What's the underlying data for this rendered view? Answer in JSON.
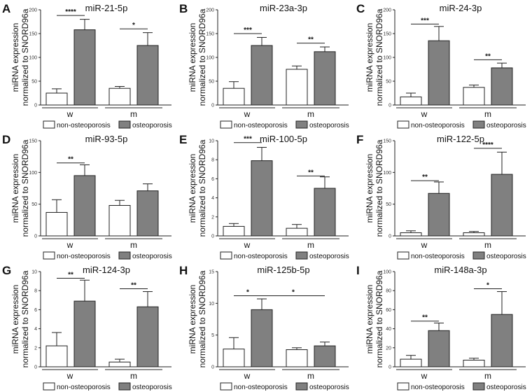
{
  "legend": {
    "a": "non-osteoporosis",
    "b": "osteoporosis"
  },
  "colors": {
    "a": "#ffffff",
    "b": "#808080",
    "stroke": "#222222"
  },
  "chart_data": [
    {
      "type": "bar",
      "panel": "A",
      "title": "miR-21-5p",
      "ylabel": [
        "miRNA expression",
        "normalized to SNORD96a"
      ],
      "categories": [
        "w",
        "m"
      ],
      "ylim": [
        0,
        200
      ],
      "yticks": [
        0,
        50,
        100,
        150,
        200
      ],
      "series": [
        {
          "name": "non-osteoporosis",
          "values": [
            25,
            35
          ],
          "errors": [
            9,
            4
          ]
        },
        {
          "name": "osteoporosis",
          "values": [
            158,
            125
          ],
          "errors": [
            22,
            27
          ]
        }
      ],
      "annotations": [
        {
          "text": "****",
          "from": "w.0",
          "to": "w.1",
          "y": 188
        },
        {
          "text": "*",
          "from": "m.0",
          "to": "m.1",
          "y": 160
        }
      ]
    },
    {
      "type": "bar",
      "panel": "B",
      "title": "miR-23a-3p",
      "ylabel": [
        "miRNA expression",
        "normalized to SNORD96a"
      ],
      "categories": [
        "w",
        "m"
      ],
      "ylim": [
        0,
        200
      ],
      "yticks": [
        0,
        50,
        100,
        150,
        200
      ],
      "series": [
        {
          "name": "non-osteoporosis",
          "values": [
            35,
            75
          ],
          "errors": [
            14,
            7
          ]
        },
        {
          "name": "osteoporosis",
          "values": [
            125,
            112
          ],
          "errors": [
            17,
            10
          ]
        }
      ],
      "annotations": [
        {
          "text": "***",
          "from": "w.0",
          "to": "w.1",
          "y": 150
        },
        {
          "text": "**",
          "from": "m.0",
          "to": "m.1",
          "y": 130
        }
      ]
    },
    {
      "type": "bar",
      "panel": "C",
      "title": "miR-24-3p",
      "ylabel": [
        "miRNA expression",
        "normalized to SNORD96a"
      ],
      "categories": [
        "w",
        "m"
      ],
      "ylim": [
        0,
        200
      ],
      "yticks": [
        0,
        50,
        100,
        150,
        200
      ],
      "series": [
        {
          "name": "non-osteoporosis",
          "values": [
            17,
            37
          ],
          "errors": [
            8,
            5
          ]
        },
        {
          "name": "osteoporosis",
          "values": [
            135,
            78
          ],
          "errors": [
            30,
            10
          ]
        }
      ],
      "annotations": [
        {
          "text": "***",
          "from": "w.0",
          "to": "w.1",
          "y": 170
        },
        {
          "text": "**",
          "from": "m.0",
          "to": "m.1",
          "y": 95
        }
      ]
    },
    {
      "type": "bar",
      "panel": "D",
      "title": "miR-93-5p",
      "ylabel": [
        "miRNA expression",
        "normalized to SNORD96a"
      ],
      "categories": [
        "w",
        "m"
      ],
      "ylim": [
        0,
        150
      ],
      "yticks": [
        0,
        50,
        100,
        150
      ],
      "series": [
        {
          "name": "non-osteoporosis",
          "values": [
            37,
            48
          ],
          "errors": [
            20,
            8
          ]
        },
        {
          "name": "osteoporosis",
          "values": [
            95,
            71
          ],
          "errors": [
            17,
            11
          ]
        }
      ],
      "annotations": [
        {
          "text": "**",
          "from": "w.0",
          "to": "w.1",
          "y": 115
        }
      ]
    },
    {
      "type": "bar",
      "panel": "E",
      "title": "miR-100-5p",
      "ylabel": [
        "miRNA expression",
        "normalized to SNORD96a"
      ],
      "categories": [
        "w",
        "m"
      ],
      "ylim": [
        0,
        10
      ],
      "yticks": [
        0,
        2,
        4,
        6,
        8,
        10
      ],
      "series": [
        {
          "name": "non-osteoporosis",
          "values": [
            1.0,
            0.8
          ],
          "errors": [
            0.3,
            0.4
          ]
        },
        {
          "name": "osteoporosis",
          "values": [
            7.9,
            5.0
          ],
          "errors": [
            1.4,
            1.2
          ]
        }
      ],
      "annotations": [
        {
          "text": "***",
          "from": "w.0",
          "to": "w.1",
          "y": 9.8
        },
        {
          "text": "**",
          "from": "m.0",
          "to": "m.1",
          "y": 6.3
        }
      ]
    },
    {
      "type": "bar",
      "panel": "F",
      "title": "miR-122-5p",
      "ylabel": [
        "miRNA expression",
        "normalized to SNORD96a"
      ],
      "categories": [
        "w",
        "m"
      ],
      "ylim": [
        0,
        150
      ],
      "yticks": [
        0,
        50,
        100,
        150
      ],
      "series": [
        {
          "name": "non-osteoporosis",
          "values": [
            5,
            5
          ],
          "errors": [
            3,
            2
          ]
        },
        {
          "name": "osteoporosis",
          "values": [
            67,
            97
          ],
          "errors": [
            18,
            35
          ]
        }
      ],
      "annotations": [
        {
          "text": "**",
          "from": "w.0",
          "to": "w.1",
          "y": 87
        },
        {
          "text": "****",
          "from": "m.0",
          "to": "m.1",
          "y": 138
        }
      ]
    },
    {
      "type": "bar",
      "panel": "G",
      "title": "miR-124-3p",
      "ylabel": [
        "miRNA expression",
        "normalized to SNORD96a"
      ],
      "categories": [
        "w",
        "m"
      ],
      "ylim": [
        0,
        10
      ],
      "yticks": [
        0,
        2,
        4,
        6,
        8,
        10
      ],
      "series": [
        {
          "name": "non-osteoporosis",
          "values": [
            2.2,
            0.5
          ],
          "errors": [
            1.4,
            0.3
          ]
        },
        {
          "name": "osteoporosis",
          "values": [
            6.9,
            6.3
          ],
          "errors": [
            2.2,
            1.6
          ]
        }
      ],
      "annotations": [
        {
          "text": "**",
          "from": "w.0",
          "to": "w.1",
          "y": 9.3
        },
        {
          "text": "**",
          "from": "m.0",
          "to": "m.1",
          "y": 8.2
        }
      ]
    },
    {
      "type": "bar",
      "panel": "H",
      "title": "miR-125b-5p",
      "ylabel": [
        "miRNA expression",
        "normalized to SNORD96a"
      ],
      "categories": [
        "w",
        "m"
      ],
      "ylim": [
        0,
        15
      ],
      "yticks": [
        0,
        5,
        10,
        15
      ],
      "series": [
        {
          "name": "non-osteoporosis",
          "values": [
            2.8,
            2.7
          ],
          "errors": [
            1.8,
            0.3
          ]
        },
        {
          "name": "osteoporosis",
          "values": [
            9.0,
            3.3
          ],
          "errors": [
            1.7,
            0.6
          ]
        }
      ],
      "annotations": [
        {
          "text": "*",
          "from": "w.0",
          "to": "w.1",
          "y": 11.2
        },
        {
          "text": "*",
          "from": "w.1",
          "to": "m.1",
          "y": 11.2
        }
      ]
    },
    {
      "type": "bar",
      "panel": "I",
      "title": "miR-148a-3p",
      "ylabel": [
        "miRNA expression",
        "normalized to SNORD96a"
      ],
      "categories": [
        "w",
        "m"
      ],
      "ylim": [
        0,
        100
      ],
      "yticks": [
        0,
        20,
        40,
        60,
        80,
        100
      ],
      "series": [
        {
          "name": "non-osteoporosis",
          "values": [
            8,
            7
          ],
          "errors": [
            4,
            2
          ]
        },
        {
          "name": "osteoporosis",
          "values": [
            38,
            55
          ],
          "errors": [
            8,
            24
          ]
        }
      ],
      "annotations": [
        {
          "text": "**",
          "from": "w.0",
          "to": "w.1",
          "y": 48
        },
        {
          "text": "*",
          "from": "m.0",
          "to": "m.1",
          "y": 82
        }
      ]
    }
  ]
}
